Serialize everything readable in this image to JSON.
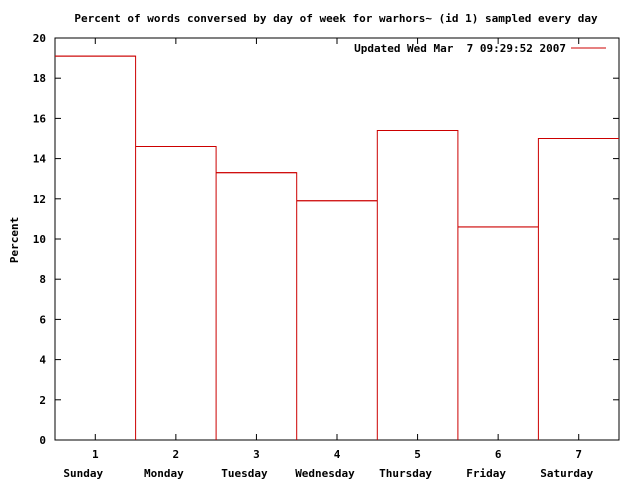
{
  "chart_data": {
    "type": "bar",
    "title": "Percent of words conversed by day of week for warhors~ (id 1) sampled every day",
    "xlabel": "",
    "ylabel": "Percent",
    "ylim": [
      0,
      20
    ],
    "yticks": [
      "0",
      "2",
      "4",
      "6",
      "8",
      "10",
      "12",
      "14",
      "16",
      "18",
      "20"
    ],
    "xlim": [
      0.5,
      7.5
    ],
    "categories": [
      "1",
      "2",
      "3",
      "4",
      "5",
      "6",
      "7"
    ],
    "day_names": [
      "Sunday",
      "Monday",
      "Tuesday",
      "Wednesday",
      "Thursday",
      "Friday",
      "Saturday"
    ],
    "series": [
      {
        "name": "Updated Wed Mar  7 09:29:52 2007",
        "color": "#cc0000",
        "values": [
          19.1,
          14.6,
          13.3,
          11.9,
          15.4,
          10.6,
          15.0
        ]
      }
    ],
    "legend_position": "top-right",
    "grid": false
  }
}
